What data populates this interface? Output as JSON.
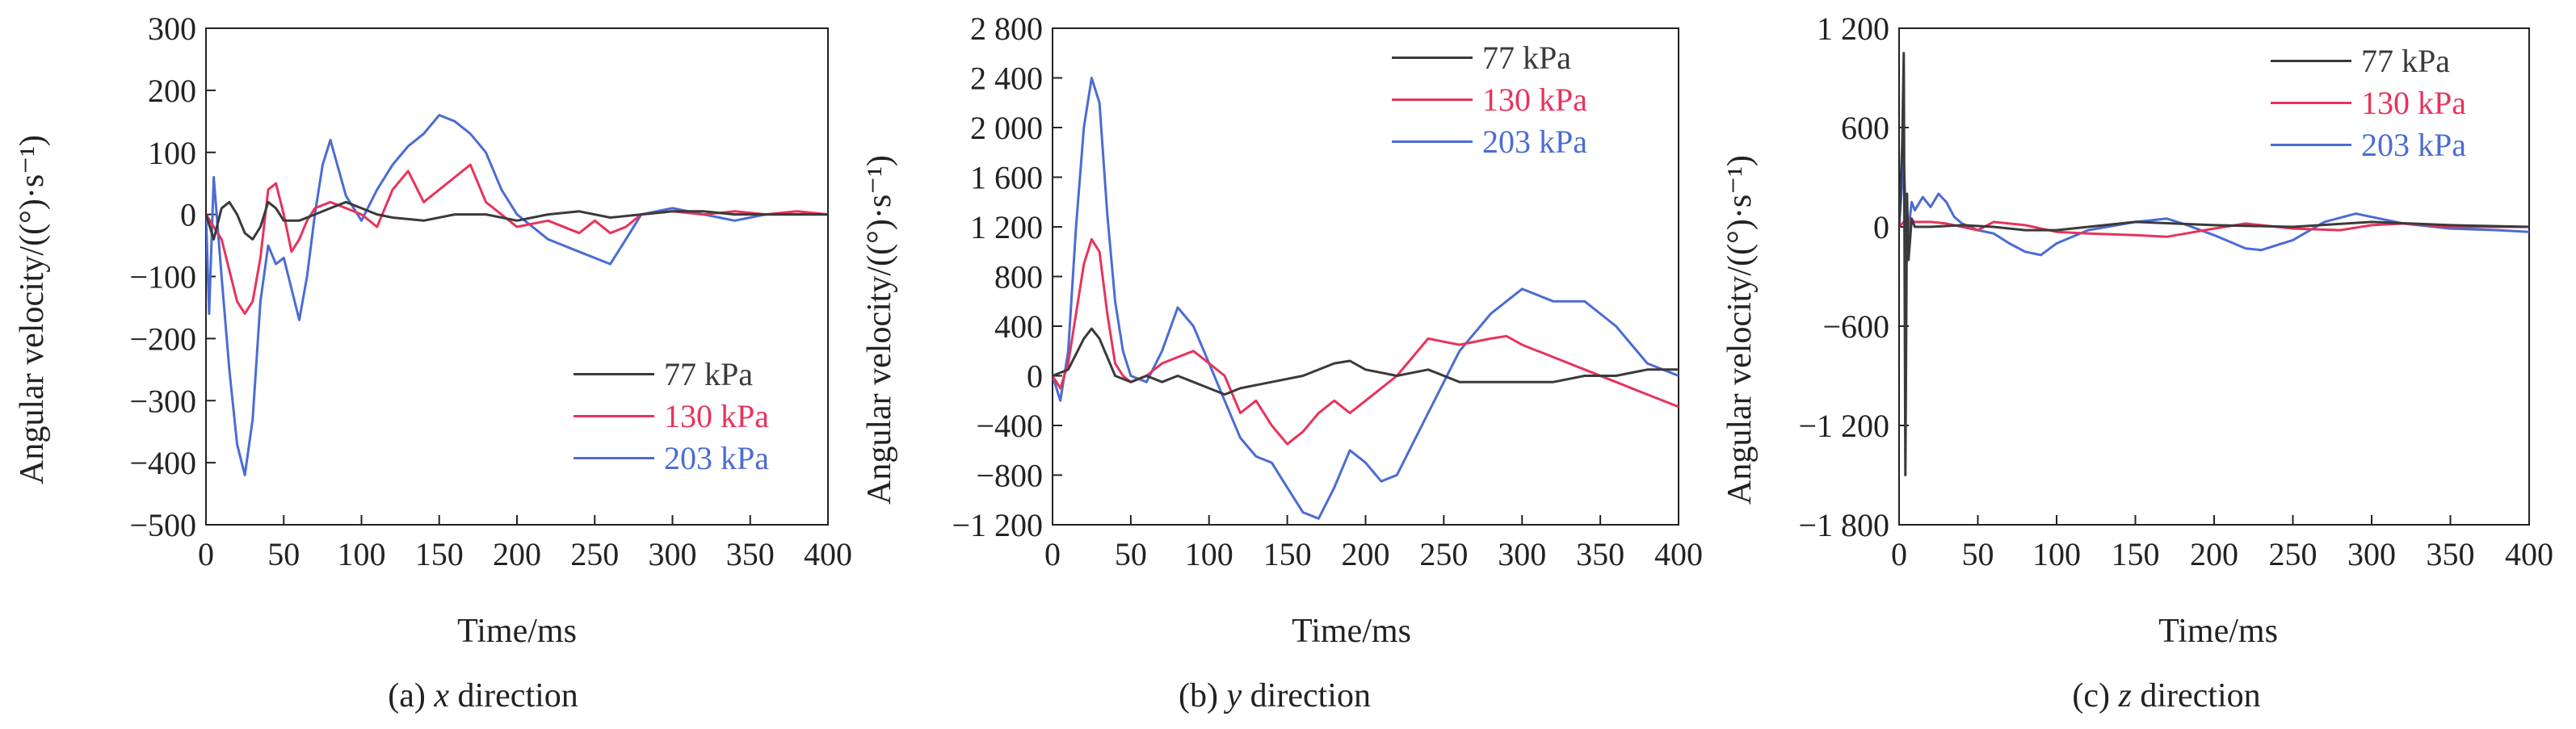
{
  "chart_data": [
    {
      "type": "line",
      "caption_prefix": "(a) ",
      "caption_axis": "x",
      "caption_suffix": " direction",
      "xlabel": "Time/ms",
      "ylabel": "Angular velocity/((°)·s⁻¹)",
      "xlim": [
        0,
        400
      ],
      "ylim": [
        -500,
        300
      ],
      "xticks": [
        0,
        50,
        100,
        150,
        200,
        250,
        300,
        350,
        400
      ],
      "yticks": [
        -500,
        -400,
        -300,
        -200,
        -100,
        0,
        100,
        200,
        300
      ],
      "ytick_labels": [
        "−500",
        "−400",
        "−300",
        "−200",
        "−100",
        "0",
        "100",
        "200",
        "300"
      ],
      "legend_position": "bottom-right",
      "series": [
        {
          "name": "77 kPa",
          "color": "#3a3a3a",
          "x": [
            0,
            5,
            10,
            15,
            20,
            25,
            30,
            35,
            40,
            45,
            50,
            60,
            70,
            80,
            90,
            100,
            110,
            120,
            140,
            160,
            180,
            200,
            220,
            240,
            260,
            280,
            300,
            320,
            340,
            360,
            380,
            400
          ],
          "y": [
            0,
            -40,
            10,
            20,
            0,
            -30,
            -40,
            -20,
            20,
            10,
            -10,
            -10,
            0,
            10,
            20,
            10,
            0,
            -5,
            -10,
            0,
            0,
            -10,
            0,
            5,
            -5,
            0,
            5,
            5,
            0,
            0,
            0,
            0
          ]
        },
        {
          "name": "130 kPa",
          "color": "#e8335b",
          "x": [
            0,
            5,
            10,
            15,
            20,
            25,
            30,
            35,
            40,
            45,
            50,
            55,
            60,
            65,
            70,
            80,
            90,
            100,
            110,
            120,
            130,
            140,
            150,
            160,
            170,
            180,
            200,
            220,
            240,
            250,
            260,
            270,
            280,
            300,
            320,
            340,
            360,
            380,
            400
          ],
          "y": [
            0,
            -20,
            -40,
            -90,
            -140,
            -160,
            -140,
            -70,
            40,
            50,
            0,
            -60,
            -40,
            -10,
            10,
            20,
            10,
            0,
            -20,
            40,
            70,
            20,
            40,
            60,
            80,
            20,
            -20,
            -10,
            -30,
            -10,
            -30,
            -20,
            0,
            5,
            0,
            5,
            0,
            5,
            0
          ]
        },
        {
          "name": "203 kPa",
          "color": "#4a6cd4",
          "x": [
            0,
            2,
            5,
            10,
            15,
            20,
            25,
            30,
            35,
            40,
            45,
            50,
            55,
            60,
            65,
            70,
            75,
            80,
            90,
            100,
            110,
            120,
            130,
            140,
            150,
            160,
            170,
            180,
            190,
            200,
            220,
            240,
            260,
            270,
            280,
            300,
            320,
            340,
            360,
            380,
            400
          ],
          "y": [
            0,
            -160,
            60,
            -100,
            -250,
            -370,
            -420,
            -330,
            -140,
            -50,
            -80,
            -70,
            -120,
            -170,
            -100,
            0,
            80,
            120,
            30,
            -10,
            40,
            80,
            110,
            130,
            160,
            150,
            130,
            100,
            40,
            0,
            -40,
            -60,
            -80,
            -40,
            0,
            10,
            0,
            -10,
            0,
            0,
            0
          ]
        }
      ]
    },
    {
      "type": "line",
      "caption_prefix": "(b) ",
      "caption_axis": "y",
      "caption_suffix": " direction",
      "xlabel": "Time/ms",
      "ylabel": "Angular velocity/((°)·s⁻¹)",
      "xlim": [
        0,
        400
      ],
      "ylim": [
        -1200,
        2800
      ],
      "xticks": [
        0,
        50,
        100,
        150,
        200,
        250,
        300,
        350,
        400
      ],
      "yticks": [
        -1200,
        -800,
        -400,
        0,
        400,
        800,
        1200,
        1600,
        2000,
        2400,
        2800
      ],
      "ytick_labels": [
        "−1 200",
        "−800",
        "−400",
        "0",
        "400",
        "800",
        "1 200",
        "1 600",
        "2 000",
        "2 400",
        "2 800"
      ],
      "legend_position": "top-right",
      "series": [
        {
          "name": "77 kPa",
          "color": "#3a3a3a",
          "x": [
            0,
            10,
            20,
            25,
            30,
            40,
            50,
            60,
            70,
            80,
            90,
            100,
            110,
            120,
            140,
            160,
            180,
            190,
            200,
            220,
            240,
            260,
            280,
            300,
            320,
            340,
            360,
            380,
            400
          ],
          "y": [
            0,
            50,
            300,
            380,
            300,
            0,
            -50,
            0,
            -50,
            0,
            -50,
            -100,
            -150,
            -100,
            -50,
            0,
            100,
            120,
            50,
            0,
            50,
            -50,
            -50,
            -50,
            -50,
            0,
            0,
            50,
            50
          ]
        },
        {
          "name": "130 kPa",
          "color": "#e8335b",
          "x": [
            0,
            5,
            10,
            15,
            20,
            25,
            30,
            35,
            40,
            45,
            50,
            60,
            70,
            80,
            90,
            100,
            110,
            120,
            130,
            140,
            150,
            160,
            170,
            180,
            190,
            200,
            210,
            220,
            240,
            260,
            280,
            290,
            300,
            320,
            340,
            360,
            380,
            400
          ],
          "y": [
            0,
            -100,
            100,
            500,
            900,
            1100,
            1000,
            500,
            100,
            0,
            -50,
            0,
            100,
            150,
            200,
            100,
            0,
            -300,
            -200,
            -400,
            -550,
            -450,
            -300,
            -200,
            -300,
            -200,
            -100,
            0,
            300,
            250,
            300,
            320,
            250,
            150,
            50,
            -50,
            -150,
            -250
          ]
        },
        {
          "name": "203 kPa",
          "color": "#4a6cd4",
          "x": [
            0,
            5,
            10,
            15,
            20,
            25,
            30,
            35,
            40,
            45,
            50,
            60,
            70,
            80,
            90,
            100,
            110,
            120,
            130,
            140,
            150,
            160,
            170,
            180,
            190,
            200,
            210,
            220,
            240,
            260,
            280,
            300,
            320,
            340,
            360,
            380,
            400
          ],
          "y": [
            0,
            -200,
            200,
            1200,
            2000,
            2400,
            2200,
            1300,
            600,
            200,
            0,
            -50,
            200,
            550,
            400,
            100,
            -200,
            -500,
            -650,
            -700,
            -900,
            -1100,
            -1150,
            -900,
            -600,
            -700,
            -850,
            -800,
            -300,
            200,
            500,
            700,
            600,
            600,
            400,
            100,
            0
          ]
        }
      ]
    },
    {
      "type": "line",
      "caption_prefix": "(c) ",
      "caption_axis": "z",
      "caption_suffix": " direction",
      "xlabel": "Time/ms",
      "ylabel": "Angular velocity/((°)·s⁻¹)",
      "xlim": [
        0,
        400
      ],
      "ylim": [
        -1800,
        1200
      ],
      "xticks": [
        0,
        50,
        100,
        150,
        200,
        250,
        300,
        350,
        400
      ],
      "yticks": [
        -1800,
        -1200,
        -600,
        0,
        600,
        1200
      ],
      "ytick_labels": [
        "−1 800",
        "−1 200",
        "−600",
        "0",
        "600",
        "1 200"
      ],
      "legend_position": "top-right",
      "series": [
        {
          "name": "77 kPa",
          "color": "#3a3a3a",
          "x": [
            0,
            2,
            3,
            4,
            5,
            6,
            8,
            10,
            20,
            40,
            60,
            80,
            100,
            150,
            200,
            250,
            300,
            350,
            400
          ],
          "y": [
            0,
            500,
            1050,
            -1500,
            200,
            -200,
            50,
            0,
            0,
            10,
            0,
            -20,
            -20,
            30,
            10,
            0,
            30,
            10,
            0
          ]
        },
        {
          "name": "130 kPa",
          "color": "#e8335b",
          "x": [
            0,
            5,
            10,
            20,
            30,
            40,
            50,
            60,
            80,
            100,
            120,
            150,
            170,
            200,
            220,
            250,
            280,
            300,
            320,
            350,
            380,
            400
          ],
          "y": [
            0,
            50,
            30,
            30,
            20,
            0,
            -20,
            30,
            10,
            -30,
            -40,
            -50,
            -60,
            -10,
            20,
            -10,
            -20,
            10,
            20,
            0,
            0,
            0
          ]
        },
        {
          "name": "203 kPa",
          "color": "#4a6cd4",
          "x": [
            0,
            3,
            5,
            8,
            10,
            15,
            20,
            25,
            30,
            35,
            40,
            50,
            60,
            70,
            80,
            90,
            100,
            120,
            150,
            170,
            180,
            200,
            220,
            230,
            250,
            270,
            290,
            300,
            320,
            350,
            380,
            400
          ],
          "y": [
            0,
            400,
            -100,
            150,
            100,
            180,
            120,
            200,
            150,
            60,
            20,
            -20,
            -40,
            -100,
            -150,
            -170,
            -100,
            -20,
            30,
            50,
            20,
            -50,
            -130,
            -140,
            -80,
            30,
            80,
            60,
            20,
            -10,
            -20,
            -30
          ]
        }
      ]
    }
  ]
}
